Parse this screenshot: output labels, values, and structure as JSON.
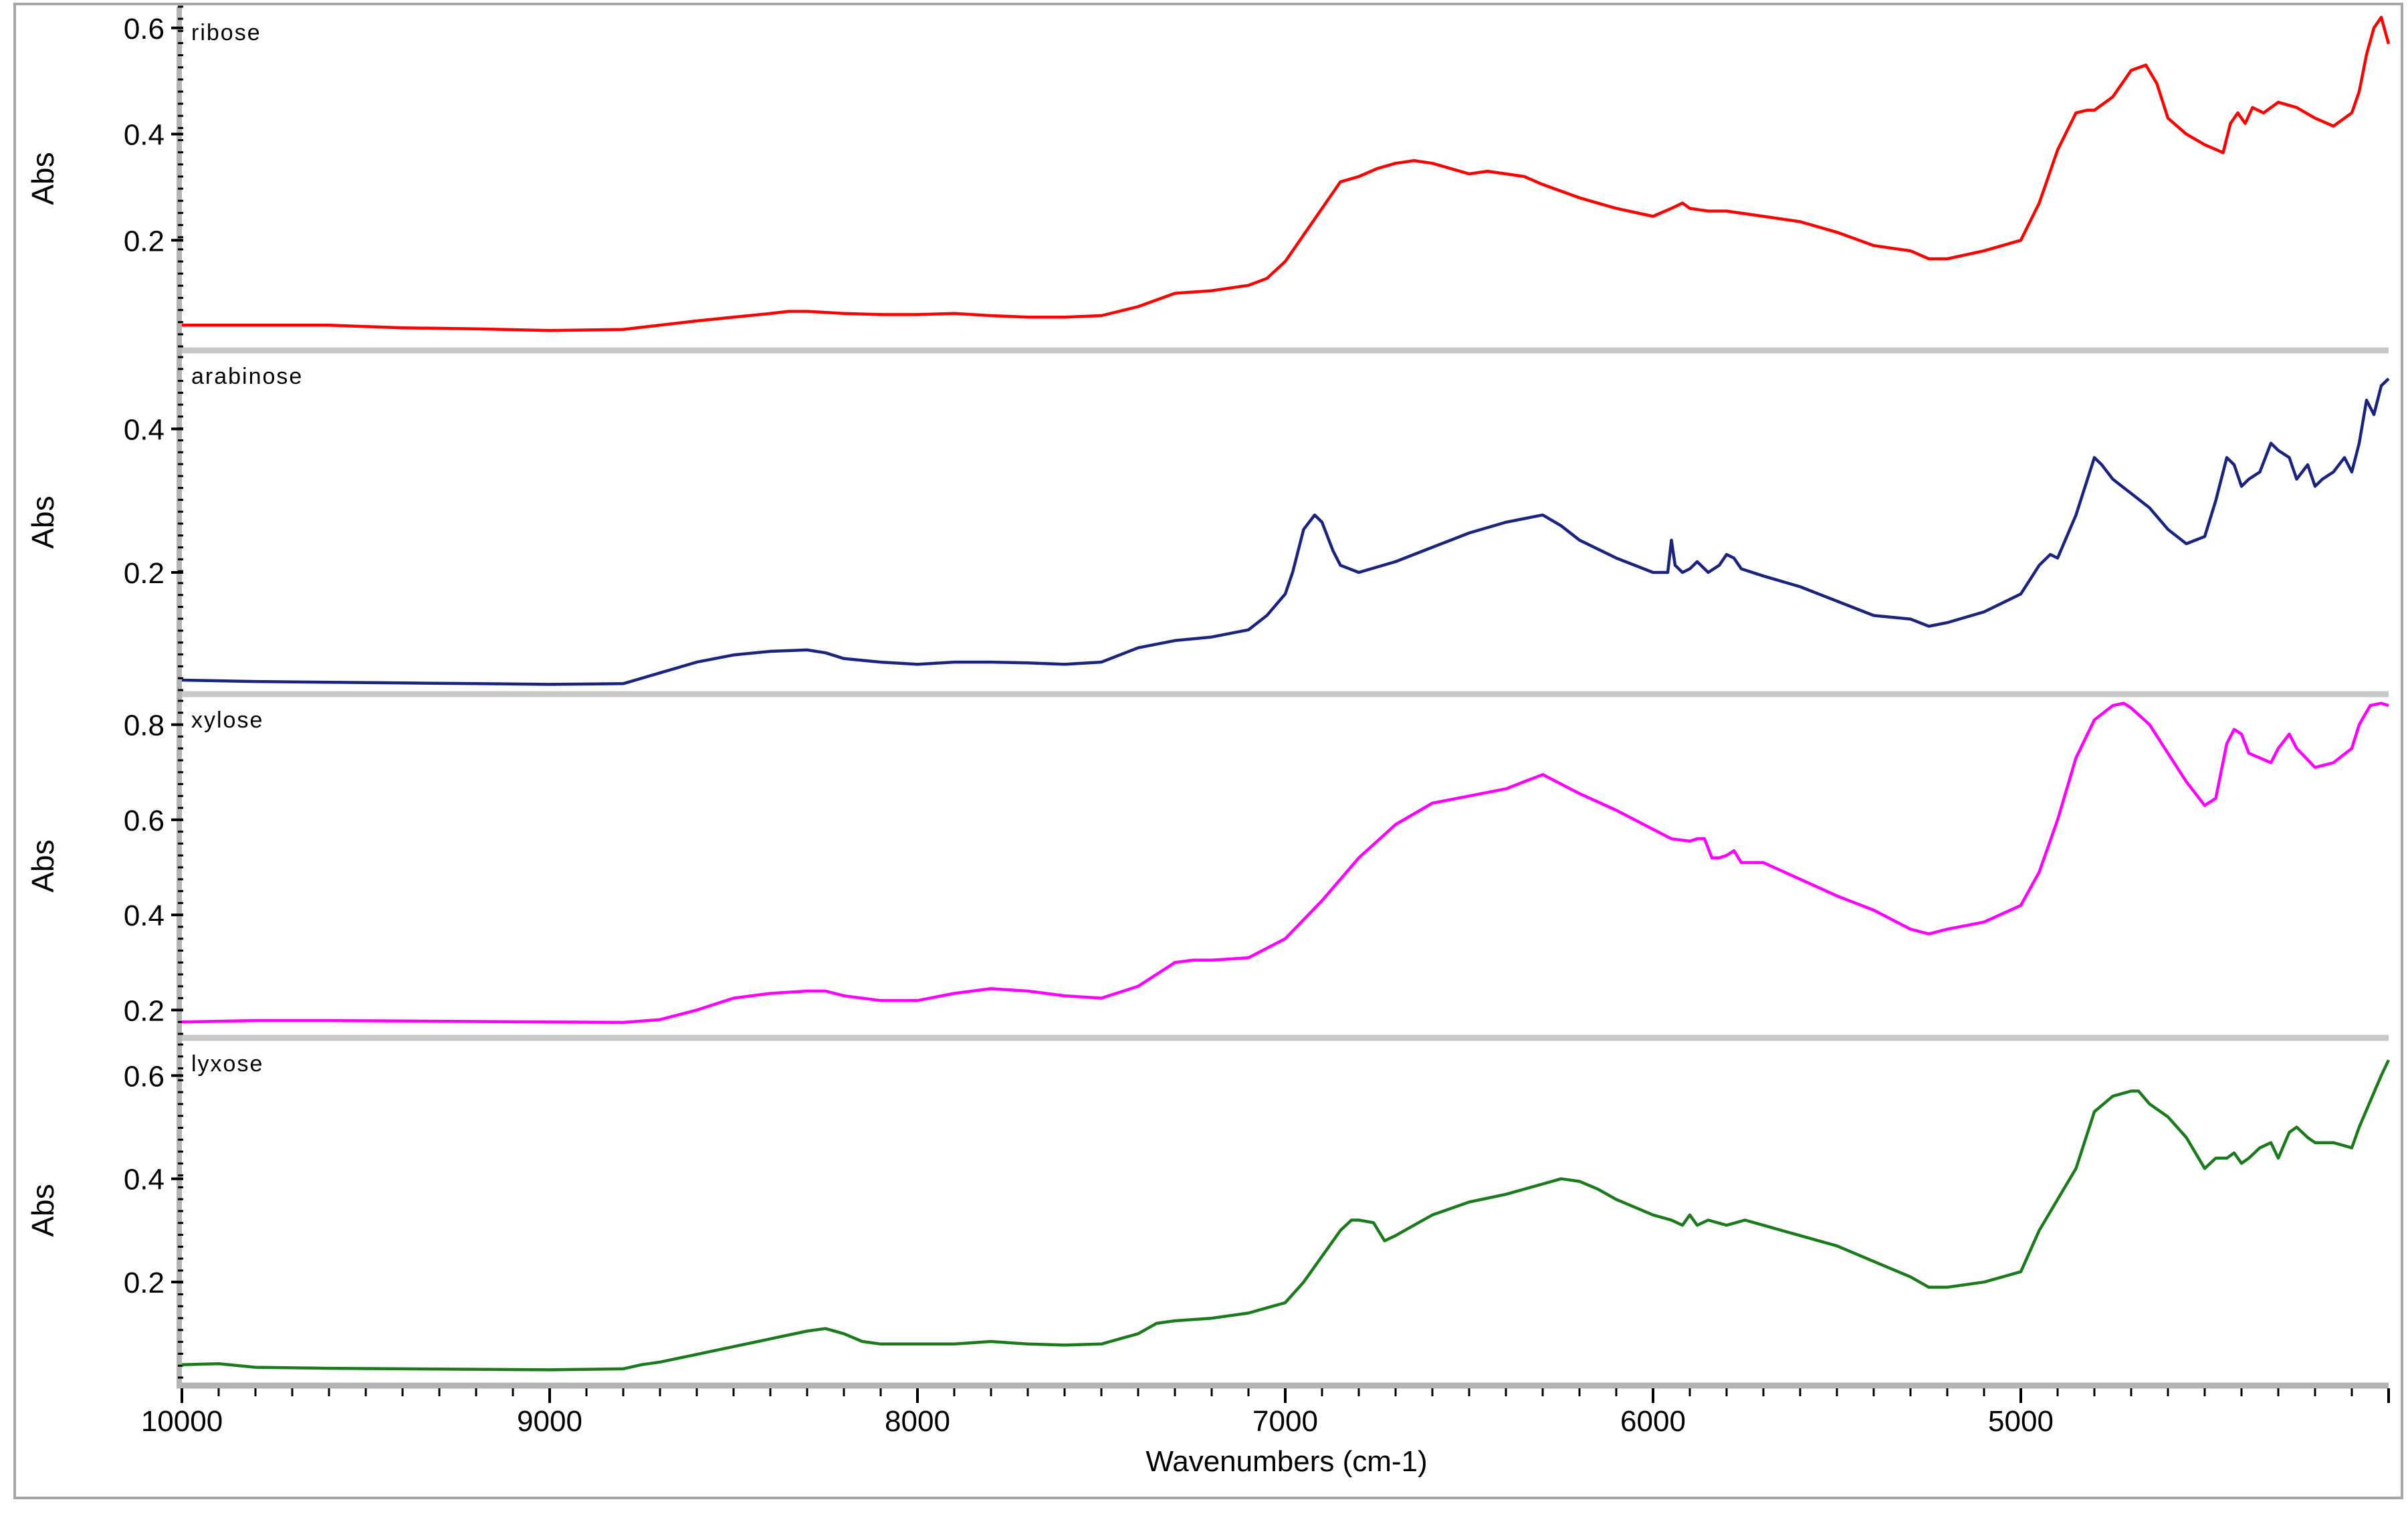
{
  "xlabel": "Wavenumbers (cm-1)",
  "chart_data": [
    {
      "type": "line",
      "title": "ribose",
      "ylabel": "Abs",
      "xlim": [
        10000,
        4000
      ],
      "ylim": [
        0.0,
        0.64
      ],
      "yticks": [
        0.2,
        0.4,
        0.6
      ],
      "color": "#ff0000",
      "x": [
        10000,
        9800,
        9600,
        9400,
        9200,
        9000,
        8800,
        8600,
        8500,
        8400,
        8350,
        8300,
        8200,
        8100,
        8000,
        7900,
        7800,
        7700,
        7600,
        7500,
        7400,
        7300,
        7200,
        7100,
        7050,
        7000,
        6950,
        6900,
        6850,
        6800,
        6750,
        6700,
        6650,
        6600,
        6500,
        6450,
        6400,
        6350,
        6300,
        6200,
        6100,
        6000,
        5950,
        5920,
        5900,
        5850,
        5800,
        5700,
        5600,
        5500,
        5400,
        5350,
        5300,
        5250,
        5200,
        5100,
        5000,
        4950,
        4900,
        4850,
        4820,
        4800,
        4750,
        4700,
        4660,
        4630,
        4600,
        4550,
        4500,
        4450,
        4430,
        4410,
        4390,
        4370,
        4340,
        4300,
        4250,
        4200,
        4150,
        4100,
        4080,
        4060,
        4040,
        4020,
        4000
      ],
      "y": [
        0.04,
        0.04,
        0.04,
        0.035,
        0.033,
        0.03,
        0.032,
        0.048,
        0.055,
        0.062,
        0.066,
        0.066,
        0.062,
        0.06,
        0.06,
        0.062,
        0.058,
        0.055,
        0.055,
        0.058,
        0.075,
        0.1,
        0.105,
        0.115,
        0.128,
        0.16,
        0.21,
        0.26,
        0.31,
        0.32,
        0.335,
        0.345,
        0.35,
        0.345,
        0.325,
        0.33,
        0.325,
        0.32,
        0.305,
        0.28,
        0.26,
        0.245,
        0.26,
        0.27,
        0.26,
        0.255,
        0.255,
        0.245,
        0.235,
        0.215,
        0.19,
        0.185,
        0.18,
        0.165,
        0.165,
        0.18,
        0.2,
        0.27,
        0.37,
        0.44,
        0.445,
        0.445,
        0.47,
        0.52,
        0.53,
        0.495,
        0.43,
        0.4,
        0.38,
        0.365,
        0.42,
        0.44,
        0.42,
        0.45,
        0.44,
        0.46,
        0.45,
        0.43,
        0.415,
        0.44,
        0.48,
        0.55,
        0.6,
        0.62,
        0.57
      ]
    },
    {
      "type": "line",
      "title": "arabinose",
      "ylabel": "Abs",
      "xlim": [
        10000,
        4000
      ],
      "ylim": [
        0.036,
        0.5
      ],
      "yticks": [
        0.2,
        0.4
      ],
      "color": "#1a237e",
      "x": [
        10000,
        9800,
        9600,
        9400,
        9200,
        9000,
        8800,
        8700,
        8600,
        8500,
        8400,
        8300,
        8250,
        8200,
        8100,
        8000,
        7900,
        7800,
        7700,
        7600,
        7500,
        7400,
        7300,
        7200,
        7100,
        7050,
        7000,
        6980,
        6950,
        6920,
        6900,
        6870,
        6850,
        6800,
        6700,
        6600,
        6500,
        6400,
        6350,
        6300,
        6250,
        6200,
        6100,
        6000,
        5960,
        5950,
        5940,
        5920,
        5900,
        5880,
        5850,
        5820,
        5800,
        5780,
        5760,
        5700,
        5600,
        5500,
        5400,
        5300,
        5250,
        5200,
        5100,
        5000,
        4950,
        4920,
        4900,
        4850,
        4800,
        4780,
        4750,
        4700,
        4650,
        4600,
        4550,
        4500,
        4470,
        4440,
        4420,
        4400,
        4380,
        4350,
        4320,
        4300,
        4270,
        4250,
        4220,
        4200,
        4180,
        4150,
        4120,
        4100,
        4080,
        4060,
        4040,
        4020,
        4000
      ],
      "y": [
        0.05,
        0.048,
        0.047,
        0.046,
        0.045,
        0.044,
        0.045,
        0.06,
        0.075,
        0.085,
        0.09,
        0.092,
        0.088,
        0.08,
        0.075,
        0.072,
        0.075,
        0.075,
        0.074,
        0.072,
        0.075,
        0.095,
        0.105,
        0.11,
        0.12,
        0.14,
        0.17,
        0.2,
        0.26,
        0.28,
        0.27,
        0.23,
        0.21,
        0.2,
        0.215,
        0.235,
        0.255,
        0.27,
        0.275,
        0.28,
        0.265,
        0.245,
        0.22,
        0.2,
        0.2,
        0.245,
        0.21,
        0.2,
        0.205,
        0.215,
        0.2,
        0.21,
        0.225,
        0.22,
        0.205,
        0.195,
        0.18,
        0.16,
        0.14,
        0.135,
        0.125,
        0.13,
        0.145,
        0.17,
        0.21,
        0.225,
        0.22,
        0.28,
        0.36,
        0.35,
        0.33,
        0.31,
        0.29,
        0.26,
        0.24,
        0.25,
        0.3,
        0.36,
        0.35,
        0.32,
        0.33,
        0.34,
        0.38,
        0.37,
        0.36,
        0.33,
        0.35,
        0.32,
        0.33,
        0.34,
        0.36,
        0.34,
        0.38,
        0.44,
        0.42,
        0.46,
        0.47
      ]
    },
    {
      "type": "line",
      "title": "xylose",
      "ylabel": "Abs",
      "xlim": [
        10000,
        4000
      ],
      "ylim": [
        0.15,
        0.85
      ],
      "yticks": [
        0.2,
        0.4,
        0.6,
        0.8
      ],
      "color": "#ff00ff",
      "x": [
        10000,
        9800,
        9600,
        9400,
        9200,
        9000,
        8800,
        8700,
        8600,
        8500,
        8400,
        8300,
        8250,
        8200,
        8100,
        8000,
        7900,
        7800,
        7700,
        7600,
        7500,
        7400,
        7300,
        7250,
        7200,
        7100,
        7000,
        6900,
        6800,
        6700,
        6600,
        6500,
        6400,
        6350,
        6300,
        6250,
        6200,
        6100,
        6000,
        5950,
        5900,
        5880,
        5860,
        5840,
        5820,
        5800,
        5780,
        5760,
        5700,
        5600,
        5500,
        5400,
        5300,
        5250,
        5200,
        5100,
        5000,
        4950,
        4900,
        4850,
        4800,
        4750,
        4720,
        4700,
        4650,
        4600,
        4550,
        4500,
        4470,
        4440,
        4420,
        4400,
        4380,
        4350,
        4320,
        4300,
        4270,
        4250,
        4200,
        4150,
        4100,
        4080,
        4050,
        4020,
        4000
      ],
      "y": [
        0.175,
        0.178,
        0.178,
        0.177,
        0.176,
        0.175,
        0.174,
        0.18,
        0.2,
        0.225,
        0.235,
        0.24,
        0.24,
        0.23,
        0.22,
        0.22,
        0.235,
        0.245,
        0.24,
        0.23,
        0.225,
        0.25,
        0.3,
        0.305,
        0.305,
        0.31,
        0.35,
        0.43,
        0.52,
        0.59,
        0.635,
        0.65,
        0.665,
        0.68,
        0.695,
        0.675,
        0.655,
        0.62,
        0.58,
        0.56,
        0.555,
        0.56,
        0.56,
        0.52,
        0.52,
        0.525,
        0.535,
        0.51,
        0.51,
        0.475,
        0.44,
        0.41,
        0.37,
        0.36,
        0.37,
        0.385,
        0.42,
        0.49,
        0.6,
        0.73,
        0.81,
        0.84,
        0.845,
        0.835,
        0.8,
        0.74,
        0.68,
        0.63,
        0.645,
        0.76,
        0.79,
        0.78,
        0.74,
        0.73,
        0.72,
        0.75,
        0.78,
        0.75,
        0.71,
        0.72,
        0.75,
        0.8,
        0.84,
        0.845,
        0.84
      ]
    },
    {
      "type": "line",
      "title": "lyxose",
      "ylabel": "Abs",
      "xlim": [
        10000,
        4000
      ],
      "ylim": [
        0.015,
        0.66
      ],
      "yticks": [
        0.2,
        0.4,
        0.6
      ],
      "color": "#1b7a1b",
      "x": [
        10000,
        9900,
        9800,
        9600,
        9400,
        9200,
        9000,
        8800,
        8750,
        8700,
        8600,
        8500,
        8400,
        8300,
        8250,
        8200,
        8150,
        8100,
        8000,
        7900,
        7800,
        7700,
        7600,
        7500,
        7450,
        7400,
        7350,
        7300,
        7200,
        7100,
        7000,
        6950,
        6900,
        6850,
        6820,
        6800,
        6760,
        6730,
        6700,
        6650,
        6600,
        6500,
        6400,
        6300,
        6250,
        6200,
        6150,
        6100,
        6000,
        5950,
        5920,
        5900,
        5880,
        5850,
        5800,
        5750,
        5700,
        5650,
        5600,
        5500,
        5400,
        5300,
        5250,
        5200,
        5100,
        5000,
        4950,
        4900,
        4850,
        4800,
        4750,
        4700,
        4680,
        4650,
        4600,
        4550,
        4500,
        4470,
        4440,
        4420,
        4400,
        4380,
        4350,
        4320,
        4300,
        4270,
        4250,
        4220,
        4200,
        4150,
        4100,
        4080,
        4050,
        4020,
        4000
      ],
      "y": [
        0.04,
        0.042,
        0.035,
        0.033,
        0.032,
        0.031,
        0.03,
        0.032,
        0.04,
        0.045,
        0.06,
        0.075,
        0.09,
        0.105,
        0.11,
        0.1,
        0.085,
        0.08,
        0.08,
        0.08,
        0.085,
        0.08,
        0.078,
        0.08,
        0.09,
        0.1,
        0.12,
        0.125,
        0.13,
        0.14,
        0.16,
        0.2,
        0.25,
        0.3,
        0.32,
        0.32,
        0.315,
        0.28,
        0.29,
        0.31,
        0.33,
        0.355,
        0.37,
        0.39,
        0.4,
        0.395,
        0.38,
        0.36,
        0.33,
        0.32,
        0.31,
        0.33,
        0.31,
        0.32,
        0.31,
        0.32,
        0.31,
        0.3,
        0.29,
        0.27,
        0.24,
        0.21,
        0.19,
        0.19,
        0.2,
        0.22,
        0.3,
        0.36,
        0.42,
        0.53,
        0.56,
        0.57,
        0.57,
        0.545,
        0.52,
        0.48,
        0.42,
        0.44,
        0.44,
        0.45,
        0.43,
        0.44,
        0.46,
        0.47,
        0.44,
        0.49,
        0.5,
        0.48,
        0.47,
        0.47,
        0.46,
        0.5,
        0.55,
        0.6,
        0.63
      ]
    }
  ]
}
